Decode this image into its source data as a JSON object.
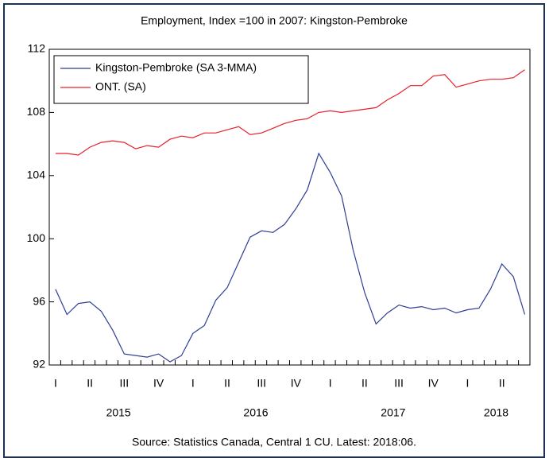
{
  "chart_data": {
    "type": "line",
    "title": "Employment, Index =100 in 2007: Kingston-Pembroke",
    "source": "Source: Statistics Canada, Central 1 CU. Latest: 2018:06.",
    "categories": [
      "I",
      null,
      null,
      "II",
      null,
      null,
      "III",
      null,
      null,
      "IV",
      null,
      null,
      "I",
      null,
      null,
      "II",
      null,
      null,
      "III",
      null,
      null,
      "IV",
      null,
      null,
      "I",
      null,
      null,
      "II",
      null,
      null,
      "III",
      null,
      null,
      "IV",
      null,
      null,
      "I",
      null,
      null,
      "II",
      null,
      null
    ],
    "years": [
      "2015",
      "2016",
      "2017",
      "2018"
    ],
    "series": [
      {
        "name": "Kingston-Pembroke (SA 3-MMA)",
        "color": "#2e3f93",
        "values": [
          96.8,
          95.2,
          95.9,
          96.0,
          95.4,
          94.2,
          92.7,
          92.6,
          92.5,
          92.7,
          92.2,
          92.6,
          94.0,
          94.5,
          96.1,
          96.9,
          98.5,
          100.1,
          100.5,
          100.4,
          100.9,
          101.9,
          103.1,
          105.4,
          104.2,
          102.7,
          99.3,
          96.6,
          94.6,
          95.3,
          95.8,
          95.6,
          95.7,
          95.5,
          95.6,
          95.3,
          95.5,
          95.6,
          96.8,
          98.4,
          97.6,
          95.2
        ]
      },
      {
        "name": "ONT. (SA)",
        "color": "#e8202a",
        "values": [
          105.4,
          105.4,
          105.3,
          105.8,
          106.1,
          106.2,
          106.1,
          105.7,
          105.9,
          105.8,
          106.3,
          106.5,
          106.4,
          106.7,
          106.7,
          106.9,
          107.1,
          106.6,
          106.7,
          107.0,
          107.3,
          107.5,
          107.6,
          108.0,
          108.1,
          108.0,
          108.1,
          108.2,
          108.3,
          108.8,
          109.2,
          109.7,
          109.7,
          110.3,
          110.4,
          109.6,
          109.8,
          110.0,
          110.1,
          110.1,
          110.2,
          110.7
        ]
      }
    ],
    "ylim": [
      92,
      112
    ],
    "yticks": [
      92,
      96,
      100,
      104,
      108,
      112
    ],
    "legend": "upper left"
  }
}
